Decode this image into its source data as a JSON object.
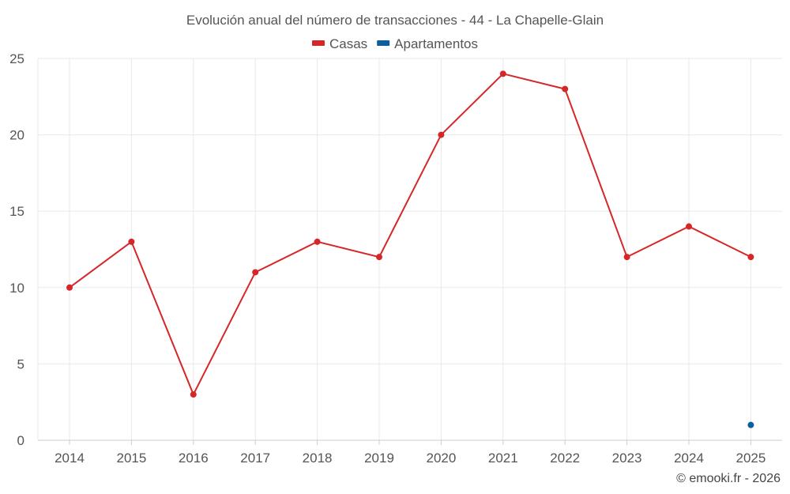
{
  "chart_data": {
    "type": "line",
    "title": "Evolución anual del número de transacciones - 44 - La Chapelle-Glain",
    "categories": [
      "2014",
      "2015",
      "2016",
      "2017",
      "2018",
      "2019",
      "2020",
      "2021",
      "2022",
      "2023",
      "2024",
      "2025"
    ],
    "ylim": [
      0,
      25
    ],
    "yticks": [
      0,
      5,
      10,
      15,
      20,
      25
    ],
    "grid": true,
    "legend_position": "top-center",
    "series": [
      {
        "name": "Casas",
        "color": "#d62728",
        "values": [
          10,
          13,
          3,
          11,
          13,
          12,
          20,
          24,
          23,
          12,
          14,
          12
        ]
      },
      {
        "name": "Apartamentos",
        "color": "#0b5f9e",
        "values": [
          null,
          null,
          null,
          null,
          null,
          null,
          null,
          null,
          null,
          null,
          null,
          1
        ]
      }
    ],
    "xlabel": "",
    "ylabel": ""
  },
  "credit": "© emooki.fr - 2026"
}
